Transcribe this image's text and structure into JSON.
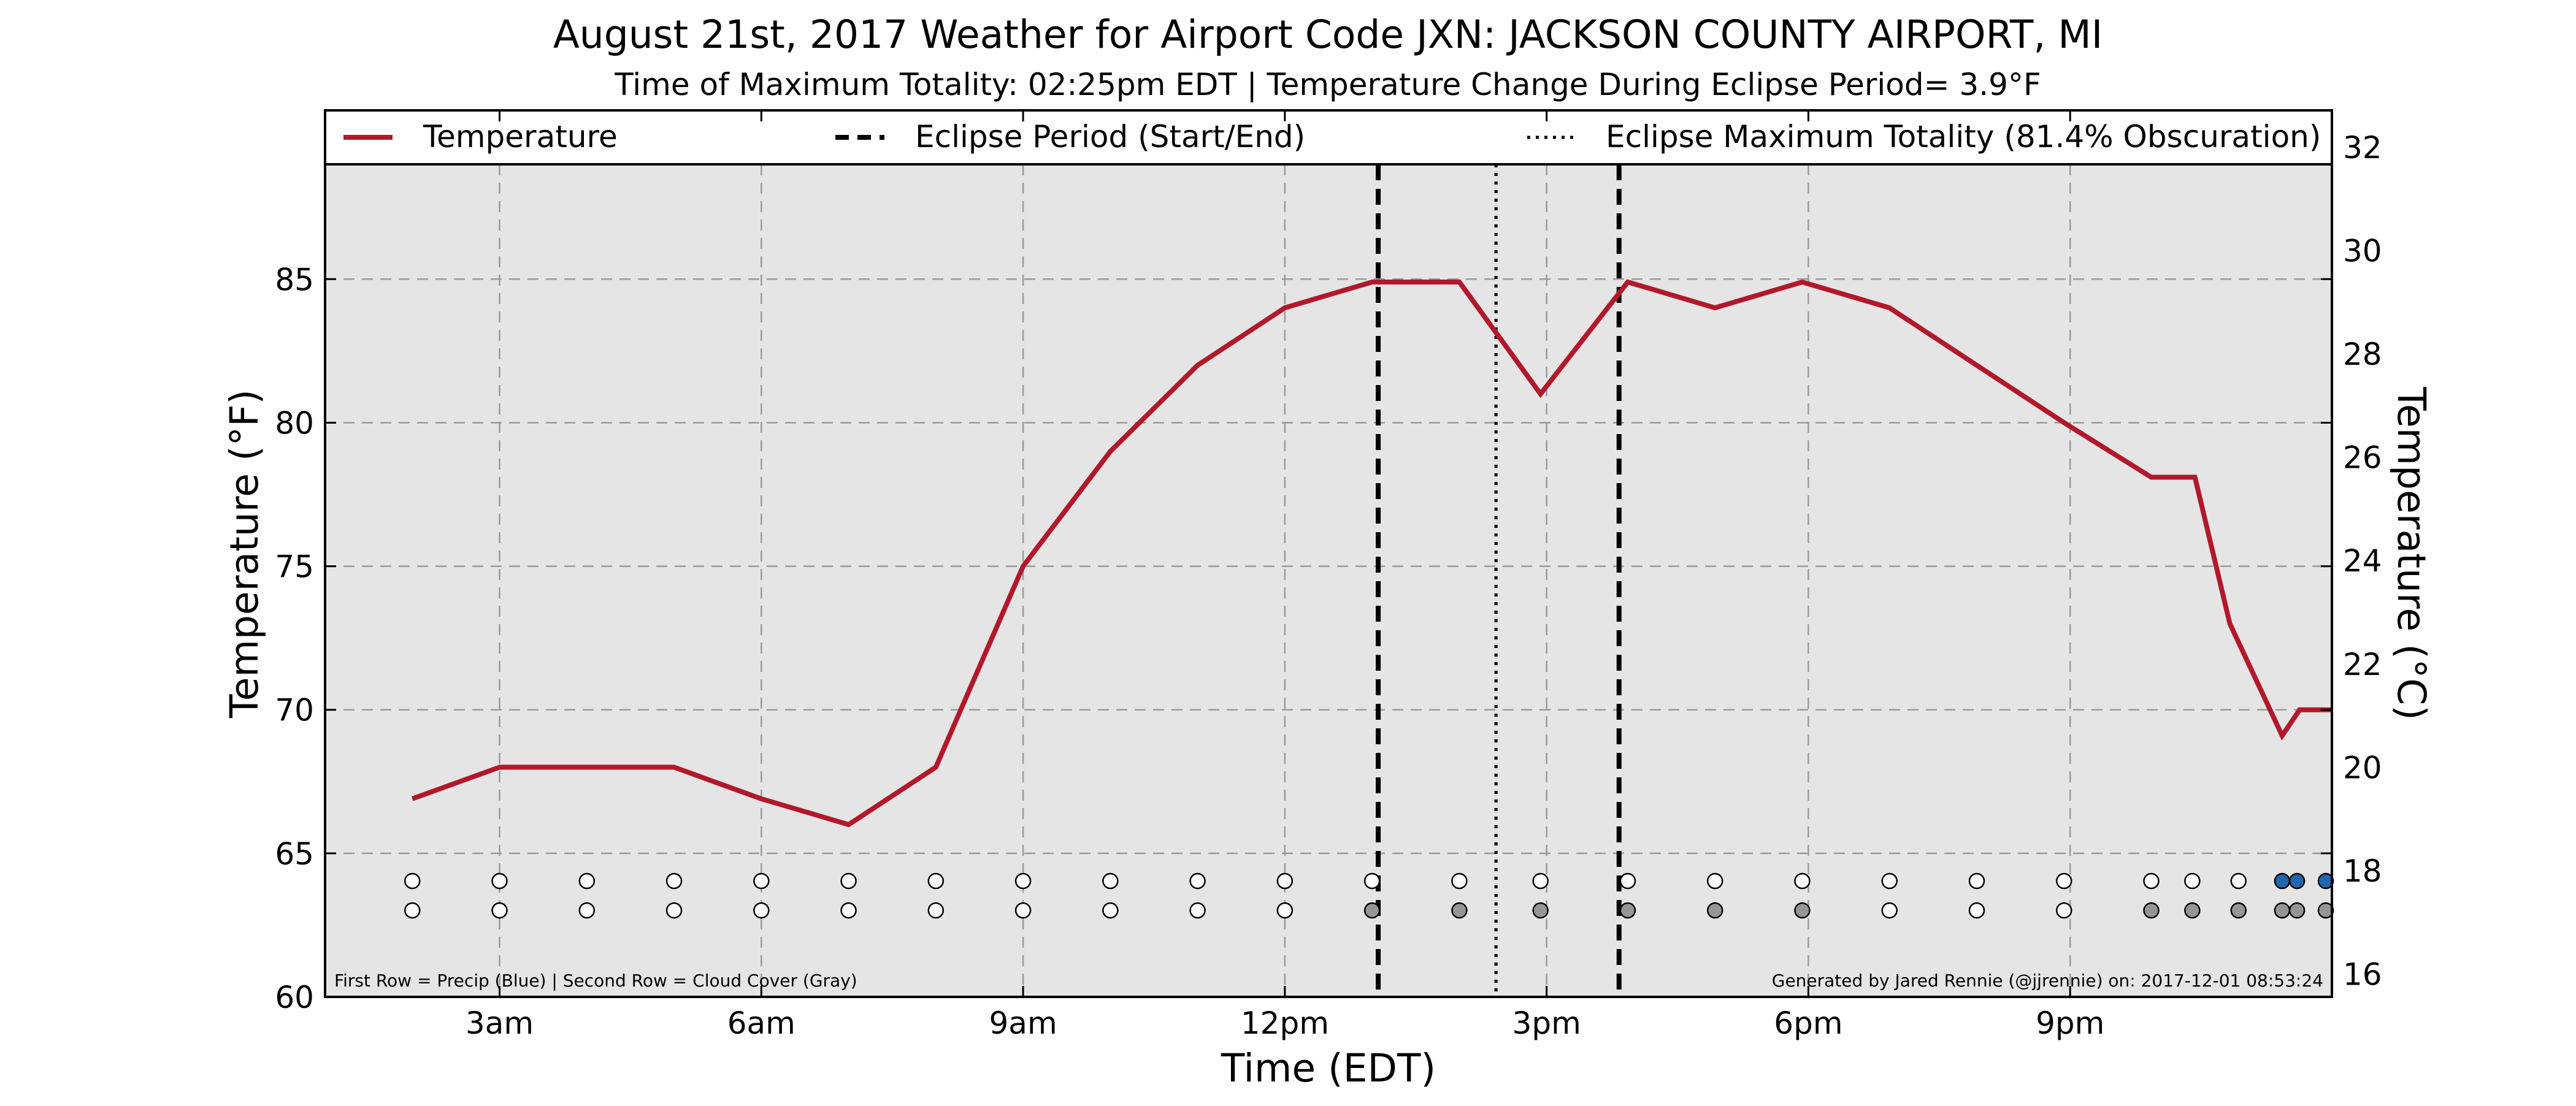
{
  "chart_data": {
    "type": "line",
    "title": "August 21st, 2017 Weather for Airport Code JXN: JACKSON COUNTY AIRPORT, MI",
    "subtitle": "Time of Maximum Totality: 02:25pm EDT | Temperature Change During Eclipse Period= 3.9°F",
    "xlabel": "Time (EDT)",
    "ylabel_left": "Temperature (°F)",
    "ylabel_right": "Temperature (°C)",
    "x_unit": "hours since midnight EDT, 2017-08-21",
    "xlim": [
      1,
      24
    ],
    "ylim_left": [
      60,
      89
    ],
    "ylim_right": [
      15.56,
      31.67
    ],
    "yticks_left": [
      60,
      65,
      70,
      75,
      80,
      85
    ],
    "yticks_right": [
      16,
      18,
      20,
      22,
      24,
      26,
      28,
      30,
      32
    ],
    "xticks": [
      {
        "x": 3,
        "label": "3am"
      },
      {
        "x": 6,
        "label": "6am"
      },
      {
        "x": 9,
        "label": "9am"
      },
      {
        "x": 12,
        "label": "12pm"
      },
      {
        "x": 15,
        "label": "3pm"
      },
      {
        "x": 18,
        "label": "6pm"
      },
      {
        "x": 21,
        "label": "9pm"
      }
    ],
    "grid": true,
    "background": "#e5e5e5",
    "series": [
      {
        "name": "Temperature",
        "color": "#b2182b",
        "x": [
          2,
          3,
          4,
          5,
          6,
          7,
          8,
          9,
          10,
          11,
          12,
          13,
          13.5,
          14,
          14.93,
          15.93,
          16.93,
          17.93,
          18.93,
          19.93,
          20.93,
          21.93,
          22.43,
          22.83,
          23.43,
          23.63,
          24
        ],
        "y": [
          66.9,
          68,
          68,
          68,
          66.9,
          66,
          68,
          75,
          79,
          82,
          84,
          84.9,
          84.9,
          84.9,
          81,
          84.9,
          84,
          84.9,
          84,
          82,
          80,
          78.1,
          78.1,
          73,
          69.1,
          70,
          70
        ]
      }
    ],
    "vlines": [
      {
        "name": "Eclipse Period (Start/End)",
        "style": "dashed",
        "x": [
          13.07,
          15.83
        ]
      },
      {
        "name": "Eclipse Maximum Totality (81.4% Obscuration)",
        "style": "dotted",
        "x": [
          14.42
        ]
      }
    ],
    "markers": {
      "caption": "First Row = Precip (Blue) | Second Row = Cloud Cover (Gray)",
      "precip_row": [
        {
          "x": 2,
          "state": "none"
        },
        {
          "x": 3,
          "state": "none"
        },
        {
          "x": 4,
          "state": "none"
        },
        {
          "x": 5,
          "state": "none"
        },
        {
          "x": 6,
          "state": "none"
        },
        {
          "x": 7,
          "state": "none"
        },
        {
          "x": 8,
          "state": "none"
        },
        {
          "x": 9,
          "state": "none"
        },
        {
          "x": 10,
          "state": "none"
        },
        {
          "x": 11,
          "state": "none"
        },
        {
          "x": 12,
          "state": "none"
        },
        {
          "x": 13,
          "state": "none"
        },
        {
          "x": 14,
          "state": "none"
        },
        {
          "x": 14.93,
          "state": "none"
        },
        {
          "x": 15.93,
          "state": "none"
        },
        {
          "x": 16.93,
          "state": "none"
        },
        {
          "x": 17.93,
          "state": "none"
        },
        {
          "x": 18.93,
          "state": "none"
        },
        {
          "x": 19.93,
          "state": "none"
        },
        {
          "x": 20.93,
          "state": "none"
        },
        {
          "x": 21.93,
          "state": "none"
        },
        {
          "x": 22.4,
          "state": "none"
        },
        {
          "x": 22.93,
          "state": "none"
        },
        {
          "x": 23.43,
          "state": "precip"
        },
        {
          "x": 23.6,
          "state": "precip"
        },
        {
          "x": 23.93,
          "state": "precip"
        }
      ],
      "cloud_row": [
        {
          "x": 2,
          "state": "clear"
        },
        {
          "x": 3,
          "state": "clear"
        },
        {
          "x": 4,
          "state": "clear"
        },
        {
          "x": 5,
          "state": "clear"
        },
        {
          "x": 6,
          "state": "clear"
        },
        {
          "x": 7,
          "state": "clear"
        },
        {
          "x": 8,
          "state": "clear"
        },
        {
          "x": 9,
          "state": "clear"
        },
        {
          "x": 10,
          "state": "clear"
        },
        {
          "x": 11,
          "state": "clear"
        },
        {
          "x": 12,
          "state": "clear"
        },
        {
          "x": 13,
          "state": "cloudy"
        },
        {
          "x": 14,
          "state": "cloudy"
        },
        {
          "x": 14.93,
          "state": "cloudy"
        },
        {
          "x": 15.93,
          "state": "cloudy"
        },
        {
          "x": 16.93,
          "state": "cloudy"
        },
        {
          "x": 17.93,
          "state": "cloudy"
        },
        {
          "x": 18.93,
          "state": "clear"
        },
        {
          "x": 19.93,
          "state": "clear"
        },
        {
          "x": 20.93,
          "state": "clear"
        },
        {
          "x": 21.93,
          "state": "cloudy"
        },
        {
          "x": 22.4,
          "state": "cloudy"
        },
        {
          "x": 22.93,
          "state": "cloudy"
        },
        {
          "x": 23.43,
          "state": "cloudy"
        },
        {
          "x": 23.6,
          "state": "cloudy"
        },
        {
          "x": 23.93,
          "state": "cloudy"
        }
      ],
      "colors": {
        "none": "#ffffff",
        "precip": "#2166ac",
        "clear": "#ffffff",
        "cloudy": "#969696"
      }
    },
    "legend": {
      "placement": "top",
      "entries": [
        {
          "label": "Temperature",
          "style": "solid",
          "color": "#b2182b"
        },
        {
          "label": "Eclipse Period (Start/End)",
          "style": "dashed",
          "color": "#000000"
        },
        {
          "label": "Eclipse Maximum Totality (81.4% Obscuration)",
          "style": "dotted",
          "color": "#000000"
        }
      ]
    },
    "credit": "Generated by Jared Rennie (@jjrennie) on: 2017-12-01 08:53:24"
  }
}
